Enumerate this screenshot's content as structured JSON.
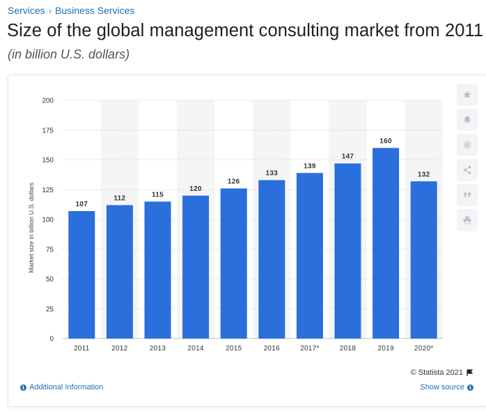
{
  "breadcrumb": {
    "items": [
      "Services",
      "Business Services"
    ],
    "separator": "›"
  },
  "title": "Size of the global management consulting market from 2011",
  "subtitle": "(in billion U.S. dollars)",
  "toolbar": {
    "icons": [
      "star-icon",
      "bell-icon",
      "gear-icon",
      "share-icon",
      "quote-icon",
      "print-icon"
    ]
  },
  "footer": {
    "credit": "© Statista 2021",
    "additional_info": "Additional Information",
    "show_source": "Show source"
  },
  "colors": {
    "bar": "#2a6fdb",
    "link": "#1f6fb5",
    "band": "#f5f5f5"
  },
  "chart_data": {
    "type": "bar",
    "categories": [
      "2011",
      "2012",
      "2013",
      "2014",
      "2015",
      "2016",
      "2017*",
      "2018",
      "2019",
      "2020*"
    ],
    "values": [
      107,
      112,
      115,
      120,
      126,
      133,
      139,
      147,
      160,
      132
    ],
    "data_labels": [
      "107",
      "112",
      "115",
      "120",
      "126",
      "133",
      "139",
      "147",
      "160",
      "132"
    ],
    "ylabel": "Market size in billion U.S. dollars",
    "xlabel": "",
    "ylim": [
      0,
      200
    ],
    "yticks": [
      0,
      25,
      50,
      75,
      100,
      125,
      150,
      175,
      200
    ],
    "grid": true
  }
}
